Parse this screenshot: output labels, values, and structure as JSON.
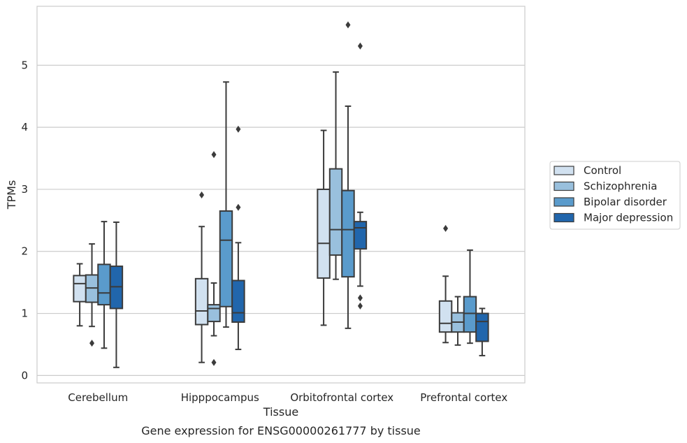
{
  "chart_data": {
    "type": "box",
    "xlabel": "Tissue",
    "ylabel": "TPMs",
    "caption": "Gene expression for ENSG00000261777 by tissue",
    "ylim": [
      -0.12,
      5.95
    ],
    "yticks": [
      0,
      1,
      2,
      3,
      4,
      5
    ],
    "grid": "horizontal",
    "legend_position": "right",
    "categories": [
      "Cerebellum",
      "Hipppocampus",
      "Orbitofrontal cortex",
      "Prefrontal cortex"
    ],
    "series": [
      {
        "name": "Control",
        "color": "#d1e1f0",
        "boxes": [
          {
            "whislo": 0.8,
            "q1": 1.19,
            "med": 1.48,
            "q3": 1.61,
            "whishi": 1.8,
            "fliers": []
          },
          {
            "whislo": 0.21,
            "q1": 0.82,
            "med": 1.04,
            "q3": 1.56,
            "whishi": 2.4,
            "fliers": [
              2.91
            ]
          },
          {
            "whislo": 0.81,
            "q1": 1.57,
            "med": 2.13,
            "q3": 3.0,
            "whishi": 3.95,
            "fliers": []
          },
          {
            "whislo": 0.53,
            "q1": 0.7,
            "med": 0.84,
            "q3": 1.2,
            "whishi": 1.6,
            "fliers": [
              2.37
            ]
          }
        ]
      },
      {
        "name": "Schizophrenia",
        "color": "#99c0dd",
        "boxes": [
          {
            "whislo": 0.79,
            "q1": 1.18,
            "med": 1.41,
            "q3": 1.62,
            "whishi": 2.12,
            "fliers": [
              0.52
            ]
          },
          {
            "whislo": 0.64,
            "q1": 0.87,
            "med": 1.08,
            "q3": 1.14,
            "whishi": 1.49,
            "fliers": [
              3.56,
              0.21
            ]
          },
          {
            "whislo": 1.55,
            "q1": 1.94,
            "med": 2.35,
            "q3": 3.33,
            "whishi": 4.89,
            "fliers": []
          },
          {
            "whislo": 0.49,
            "q1": 0.7,
            "med": 0.86,
            "q3": 1.01,
            "whishi": 1.27,
            "fliers": []
          }
        ]
      },
      {
        "name": "Bipolar disorder",
        "color": "#5a9bcc",
        "boxes": [
          {
            "whislo": 0.44,
            "q1": 1.14,
            "med": 1.33,
            "q3": 1.79,
            "whishi": 2.48,
            "fliers": []
          },
          {
            "whislo": 0.78,
            "q1": 1.11,
            "med": 2.18,
            "q3": 2.65,
            "whishi": 4.73,
            "fliers": []
          },
          {
            "whislo": 0.76,
            "q1": 1.59,
            "med": 2.35,
            "q3": 2.98,
            "whishi": 4.34,
            "fliers": [
              5.65
            ]
          },
          {
            "whislo": 0.52,
            "q1": 0.7,
            "med": 1.0,
            "q3": 1.27,
            "whishi": 2.02,
            "fliers": []
          }
        ]
      },
      {
        "name": "Major depression",
        "color": "#2166ac",
        "boxes": [
          {
            "whislo": 0.13,
            "q1": 1.08,
            "med": 1.43,
            "q3": 1.76,
            "whishi": 2.47,
            "fliers": []
          },
          {
            "whislo": 0.42,
            "q1": 0.86,
            "med": 1.01,
            "q3": 1.53,
            "whishi": 2.14,
            "fliers": [
              3.97,
              2.71
            ]
          },
          {
            "whislo": 1.44,
            "q1": 2.04,
            "med": 2.38,
            "q3": 2.48,
            "whishi": 2.63,
            "fliers": [
              5.31,
              1.25,
              1.12
            ]
          },
          {
            "whislo": 0.32,
            "q1": 0.55,
            "med": 0.87,
            "q3": 1.0,
            "whishi": 1.08,
            "fliers": []
          }
        ]
      }
    ]
  }
}
